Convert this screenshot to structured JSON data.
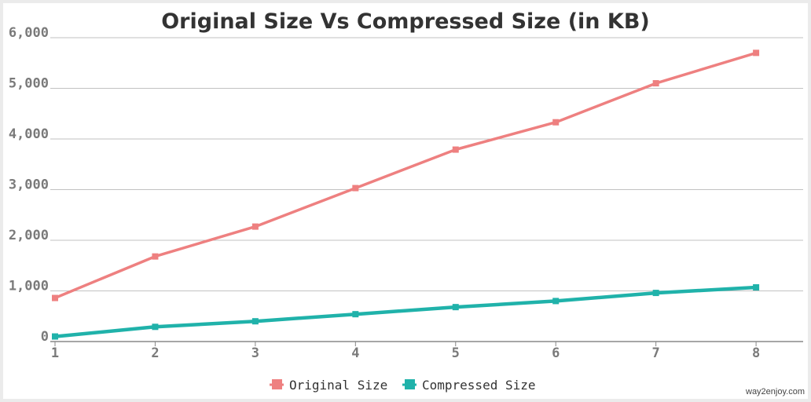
{
  "chart_data": {
    "type": "line",
    "title": "Original Size Vs Compressed Size (in KB)",
    "x": [
      1,
      2,
      3,
      4,
      5,
      6,
      7,
      8
    ],
    "x_tick_labels": [
      "1",
      "2",
      "3",
      "4",
      "5",
      "6",
      "7",
      "8"
    ],
    "y_ticks": [
      0,
      1000,
      2000,
      3000,
      4000,
      5000,
      6000
    ],
    "y_tick_labels": [
      "0",
      "1,000",
      "2,000",
      "3,000",
      "4,000",
      "5,000",
      "6,000"
    ],
    "ylim": [
      0,
      6000
    ],
    "xlim": [
      1,
      8.47
    ],
    "grid": true,
    "legend_position": "bottom-center",
    "series": [
      {
        "name": "Original Size",
        "color": "#ee8080",
        "values": [
          860,
          1680,
          2270,
          3030,
          3790,
          4330,
          5100,
          5700
        ]
      },
      {
        "name": "Compressed Size",
        "color": "#20b2aa",
        "values": [
          100,
          290,
          400,
          540,
          680,
          800,
          960,
          1070
        ]
      }
    ]
  },
  "credit": "way2enjoy.com"
}
